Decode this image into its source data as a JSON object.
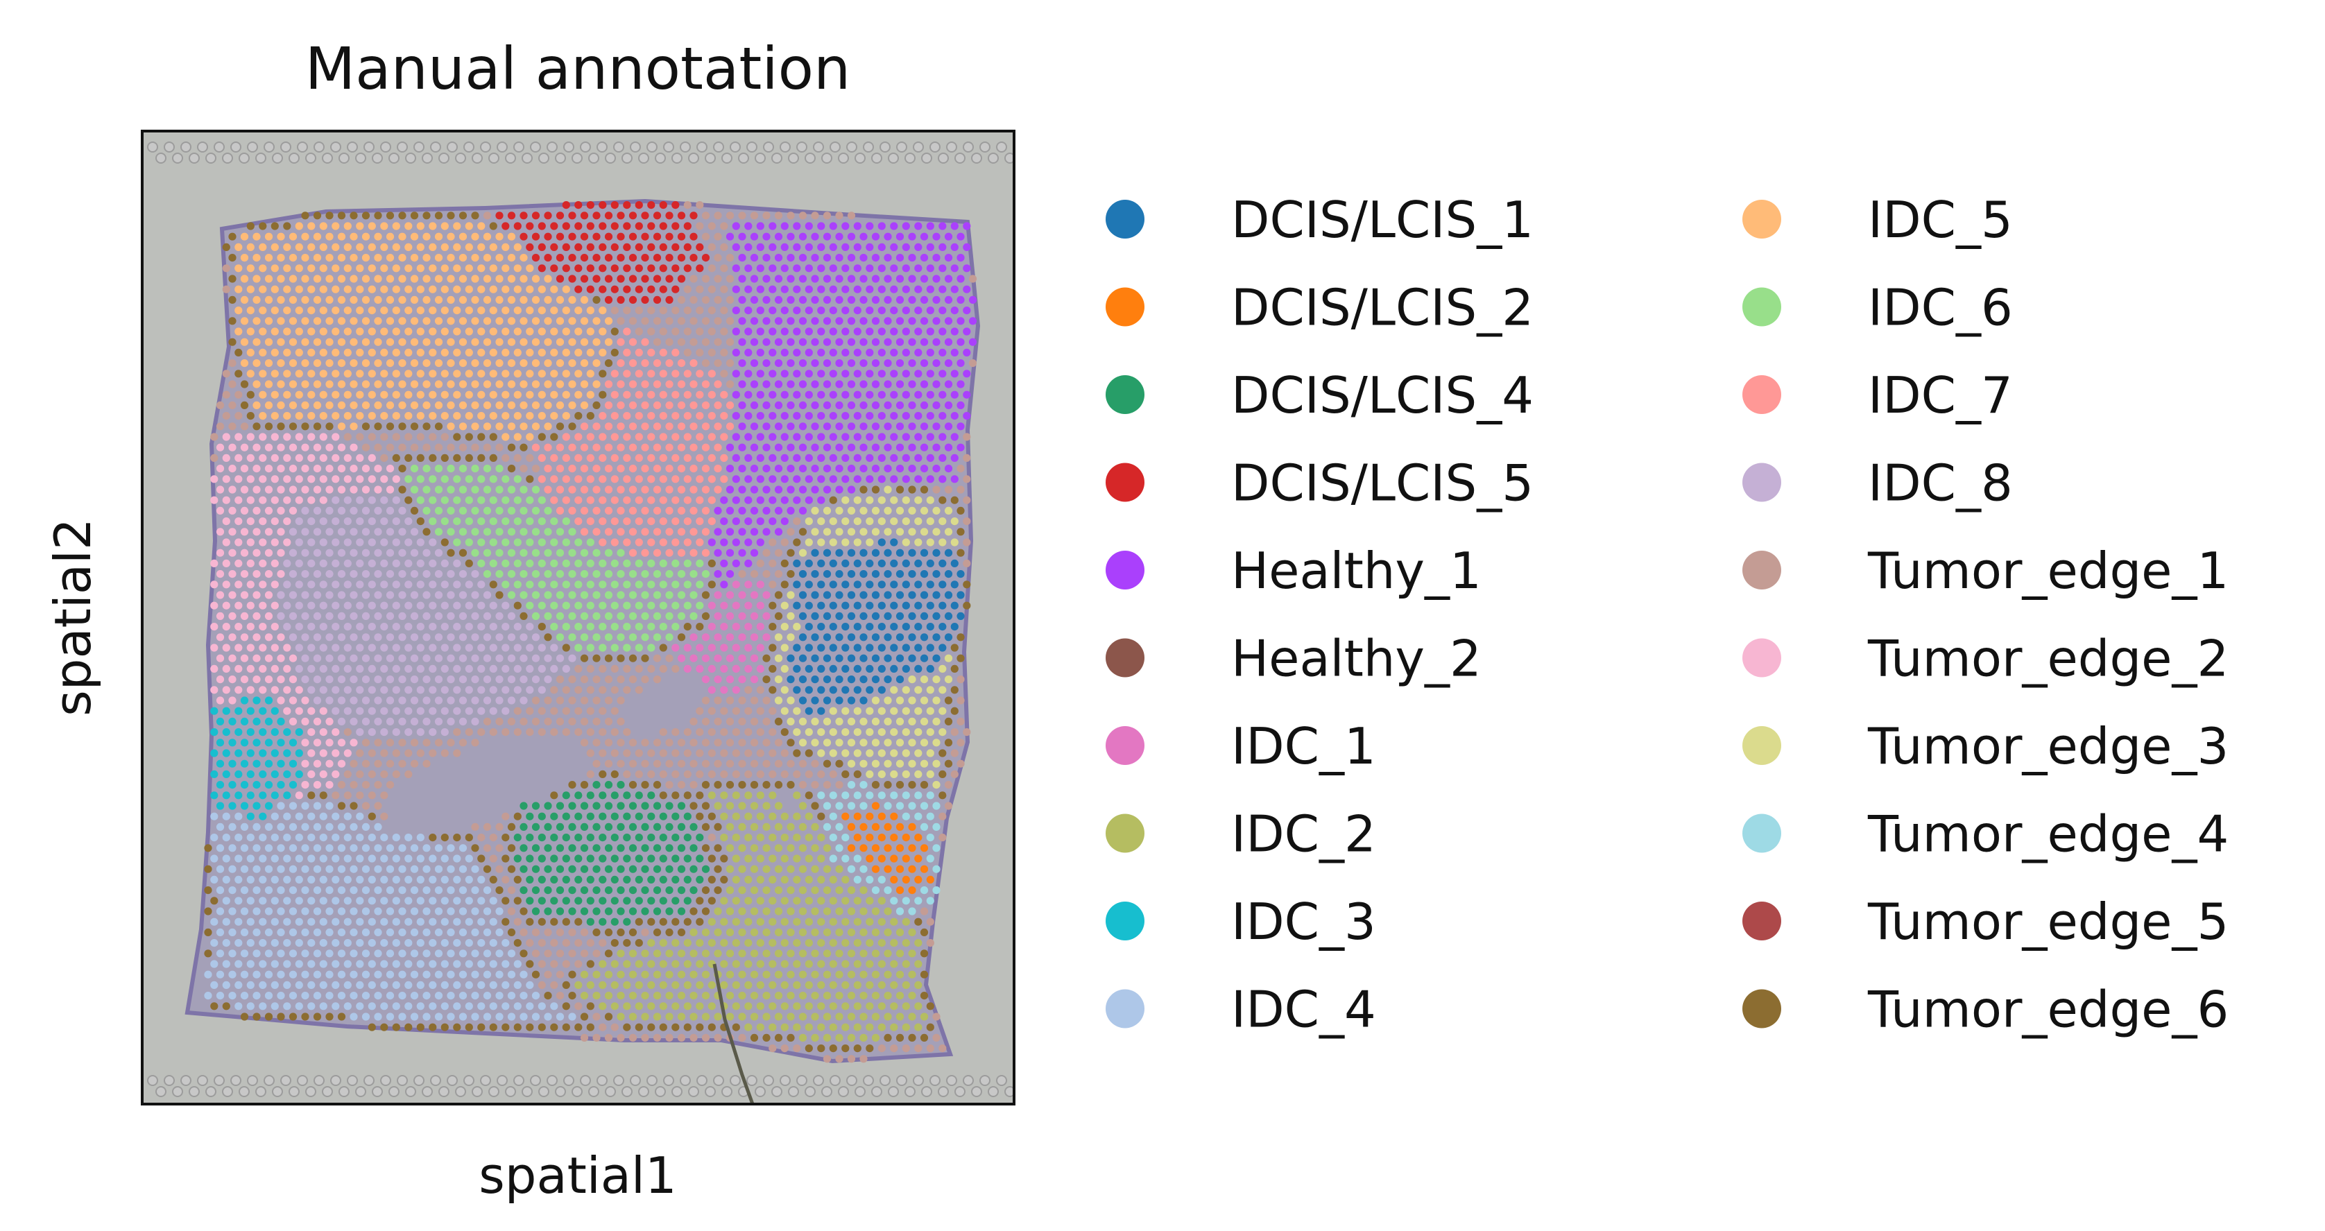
{
  "chart_data": {
    "type": "scatter",
    "title": "Manual annotation",
    "xlabel": "spatial1",
    "ylabel": "spatial2",
    "legend_placement": "right, outside plot, two columns",
    "grid": false,
    "categories": [
      {
        "name": "DCIS/LCIS_1",
        "color": "#1f77b4"
      },
      {
        "name": "DCIS/LCIS_2",
        "color": "#ff7f0e"
      },
      {
        "name": "DCIS/LCIS_4",
        "color": "#279e68"
      },
      {
        "name": "DCIS/LCIS_5",
        "color": "#d62728"
      },
      {
        "name": "Healthy_1",
        "color": "#aa40fc"
      },
      {
        "name": "Healthy_2",
        "color": "#8c564b"
      },
      {
        "name": "IDC_1",
        "color": "#e377c2"
      },
      {
        "name": "IDC_2",
        "color": "#b5bd61"
      },
      {
        "name": "IDC_3",
        "color": "#17becf"
      },
      {
        "name": "IDC_4",
        "color": "#aec7e8"
      },
      {
        "name": "IDC_5",
        "color": "#ffbb78"
      },
      {
        "name": "IDC_6",
        "color": "#98df8a"
      },
      {
        "name": "IDC_7",
        "color": "#ff9896"
      },
      {
        "name": "IDC_8",
        "color": "#c5b0d5"
      },
      {
        "name": "Tumor_edge_1",
        "color": "#c49c94"
      },
      {
        "name": "Tumor_edge_2",
        "color": "#f7b6d2"
      },
      {
        "name": "Tumor_edge_3",
        "color": "#dbdb8d"
      },
      {
        "name": "Tumor_edge_4",
        "color": "#9edae5"
      },
      {
        "name": "Tumor_edge_5",
        "color": "#ad494a"
      },
      {
        "name": "Tumor_edge_6",
        "color": "#8c6d31"
      }
    ]
  },
  "colors": {
    "tissue_background": "#bdbfbb",
    "tissue_stain": "#8a7fb8",
    "fiducial": "#a7a7a7"
  }
}
